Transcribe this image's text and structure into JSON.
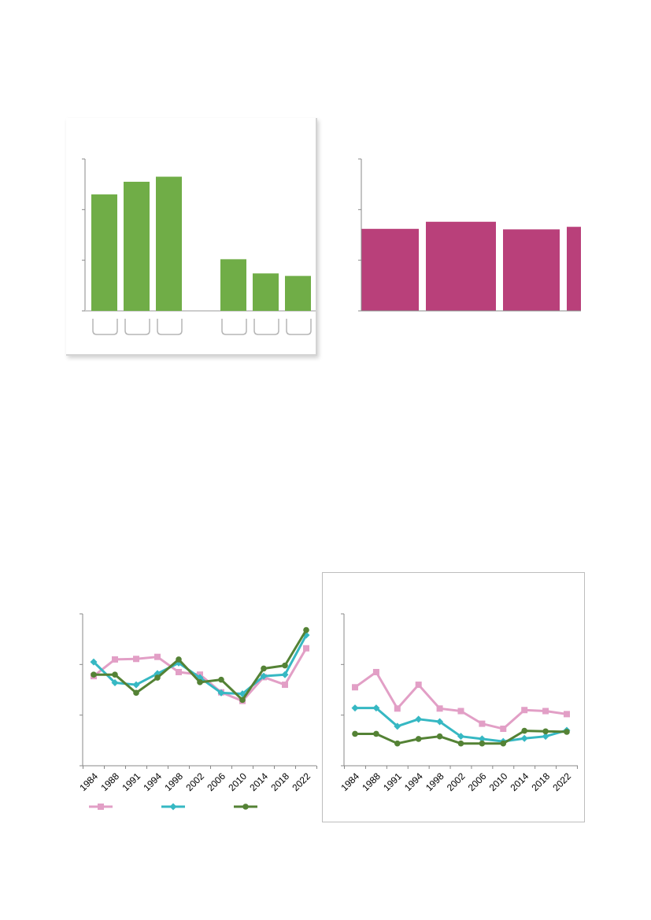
{
  "colors": {
    "green_bar": "#70ad47",
    "magenta_bar": "#b9407a",
    "pink_line": "#e29fc6",
    "teal_line": "#36b8c3",
    "dark_green_line": "#548235",
    "axis": "#888888"
  },
  "chart_data": [
    {
      "id": "top-left",
      "type": "bar",
      "categories": [
        "",
        "",
        "",
        "",
        "",
        ""
      ],
      "category_slots": [
        0,
        1,
        2,
        4,
        5,
        6
      ],
      "values": [
        2.3,
        2.55,
        2.65,
        1.02,
        0.74,
        0.69
      ],
      "ylim": [
        0,
        3
      ],
      "yticks": [
        0,
        1,
        2,
        3
      ],
      "grid": false,
      "legend": "none"
    },
    {
      "id": "top-right",
      "type": "bar",
      "categories": [
        "",
        "",
        "",
        ""
      ],
      "values": [
        1.62,
        1.76,
        1.61,
        1.66
      ],
      "ylim": [
        0,
        3
      ],
      "yticks": [
        0,
        1,
        2,
        3
      ],
      "grid": false,
      "legend": "none"
    },
    {
      "id": "bottom-left",
      "type": "line",
      "x": [
        "1984",
        "1988",
        "1991",
        "1994",
        "1998",
        "2002",
        "2006",
        "2010",
        "2014",
        "2018",
        "2022"
      ],
      "ylim": [
        0,
        3
      ],
      "yticks": [
        0,
        1,
        2,
        3
      ],
      "grid": false,
      "legend": "bottom",
      "series": [
        {
          "marker": "square",
          "color": "#e29fc6",
          "values": [
            1.77,
            2.1,
            2.11,
            2.15,
            1.85,
            1.8,
            1.45,
            1.28,
            1.75,
            1.6,
            2.32
          ]
        },
        {
          "marker": "diamond",
          "color": "#36b8c3",
          "values": [
            2.05,
            1.64,
            1.6,
            1.82,
            2.03,
            1.74,
            1.44,
            1.42,
            1.77,
            1.8,
            2.58
          ]
        },
        {
          "marker": "circle",
          "color": "#548235",
          "values": [
            1.8,
            1.8,
            1.44,
            1.74,
            2.1,
            1.65,
            1.7,
            1.3,
            1.92,
            1.98,
            2.68
          ]
        }
      ]
    },
    {
      "id": "bottom-right",
      "type": "line",
      "x": [
        "1984",
        "1988",
        "1991",
        "1994",
        "1998",
        "2002",
        "2006",
        "2010",
        "2014",
        "2018",
        "2022"
      ],
      "ylim": [
        0,
        3
      ],
      "yticks": [
        0,
        1,
        2,
        3
      ],
      "grid": false,
      "legend": "none",
      "series": [
        {
          "marker": "square",
          "color": "#e29fc6",
          "values": [
            1.55,
            1.85,
            1.13,
            1.6,
            1.13,
            1.08,
            0.83,
            0.73,
            1.1,
            1.08,
            1.02
          ]
        },
        {
          "marker": "diamond",
          "color": "#36b8c3",
          "values": [
            1.14,
            1.14,
            0.78,
            0.92,
            0.87,
            0.58,
            0.53,
            0.48,
            0.54,
            0.58,
            0.7
          ]
        },
        {
          "marker": "circle",
          "color": "#548235",
          "values": [
            0.63,
            0.63,
            0.44,
            0.53,
            0.58,
            0.44,
            0.44,
            0.44,
            0.69,
            0.68,
            0.67
          ]
        }
      ]
    }
  ]
}
